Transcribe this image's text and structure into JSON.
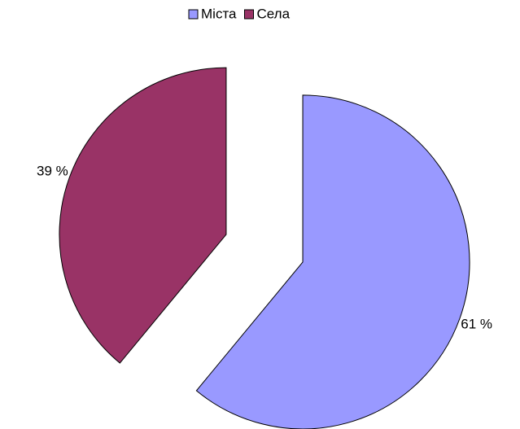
{
  "chart_data": {
    "type": "pie",
    "categories": [
      "Міста",
      "Села"
    ],
    "values": [
      61,
      39
    ],
    "value_labels": [
      "61 %",
      "39 %"
    ],
    "colors": [
      "#9999ff",
      "#993366"
    ],
    "legend": "top"
  }
}
